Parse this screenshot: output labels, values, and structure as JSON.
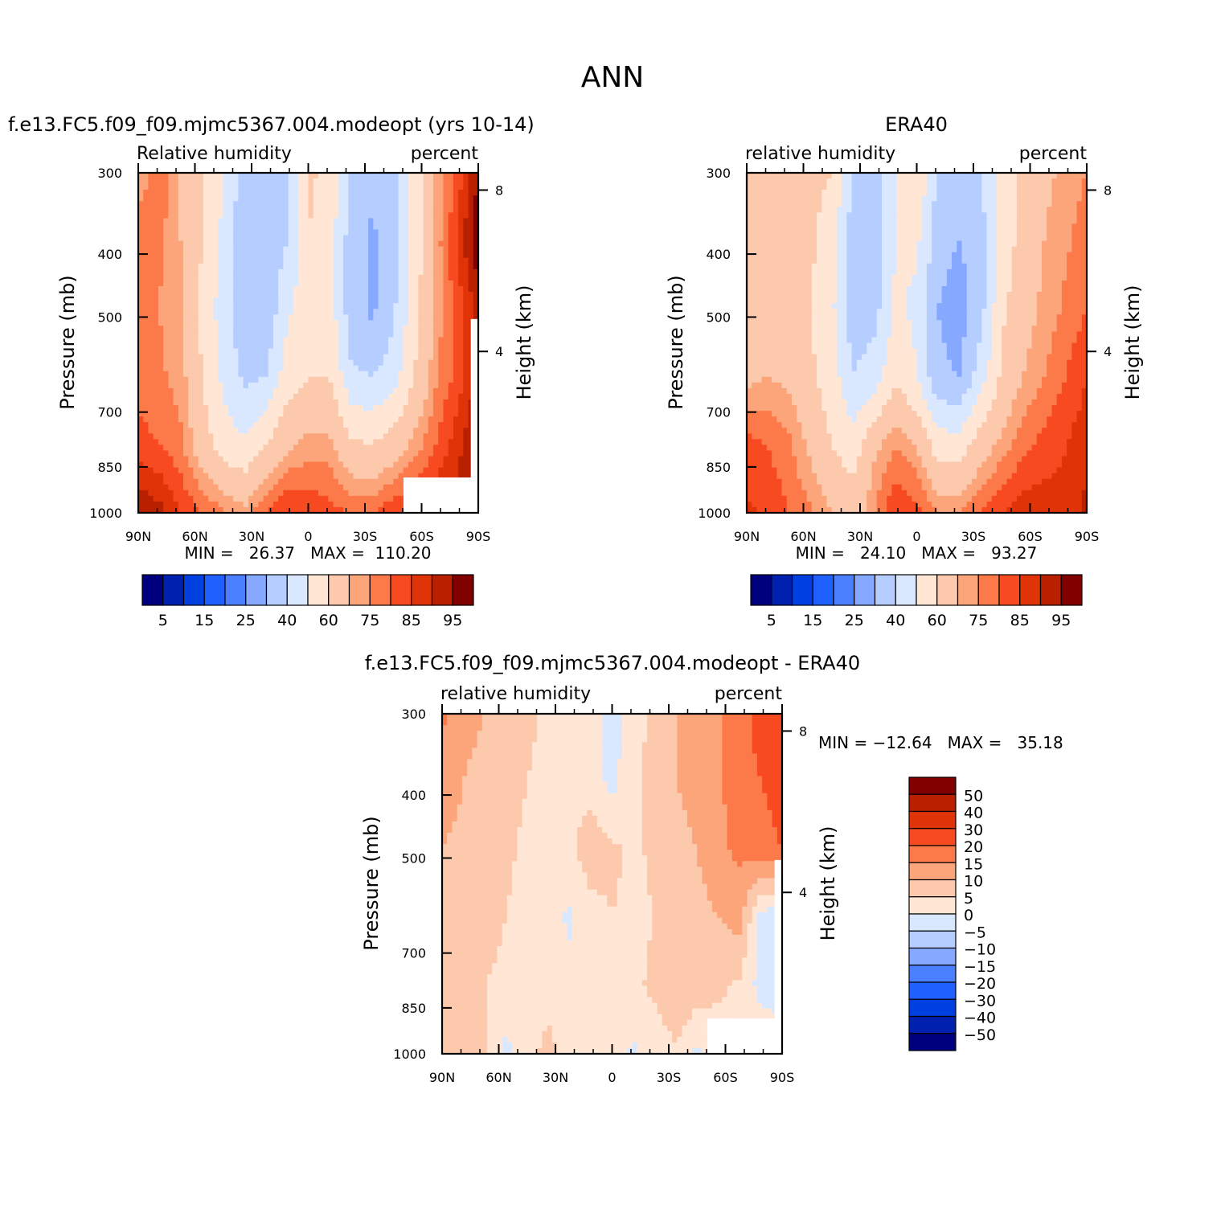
{
  "page_title": "ANN",
  "colors": {
    "abs_scale": [
      "#00007f",
      "#0020b0",
      "#0040e0",
      "#2060ff",
      "#4a7fff",
      "#86a8ff",
      "#b5cdff",
      "#d9e8ff",
      "#ffe6d5",
      "#fcc9ad",
      "#fca47a",
      "#fc7a4a",
      "#f74a20",
      "#e03308",
      "#b82000",
      "#800000"
    ],
    "diff_scale": [
      "#00007f",
      "#0020b0",
      "#0040e0",
      "#2060ff",
      "#4a7fff",
      "#86a8ff",
      "#b5cdff",
      "#d9e8ff",
      "#ffe6d5",
      "#fcc9ad",
      "#fca47a",
      "#fc7a4a",
      "#f74a20",
      "#e03308",
      "#b82000",
      "#800000"
    ]
  },
  "chart_data": [
    {
      "type": "heatmap",
      "title": "f.e13.FC5.f09_f09.mjmc5367.004.modeopt (yrs 10-14)",
      "left_label": "Relative humidity",
      "right_label": "percent",
      "ylabel": "Pressure (mb)",
      "y2label": "Height (km)",
      "x": [
        "90N",
        "60N",
        "30N",
        "0",
        "30S",
        "60S",
        "90S"
      ],
      "y": [
        300,
        400,
        500,
        700,
        850,
        1000
      ],
      "y2_ticks": [
        "8",
        "4"
      ],
      "ylim": [
        1000,
        300
      ],
      "min_text": "MIN =   26.37   MAX =  110.20",
      "colorbar_labels": [
        "5",
        "15",
        "25",
        "40",
        "60",
        "75",
        "85",
        "95"
      ],
      "values": [
        [
          70,
          80,
          68,
          62,
          50,
          35,
          33,
          38,
          62,
          57,
          40,
          33,
          38,
          55,
          70,
          82,
          95
        ],
        [
          80,
          76,
          70,
          60,
          48,
          32,
          32,
          40,
          60,
          55,
          35,
          28,
          36,
          54,
          72,
          85,
          100
        ],
        [
          78,
          75,
          70,
          58,
          45,
          32,
          32,
          48,
          55,
          55,
          35,
          28,
          38,
          56,
          72,
          82,
          92
        ],
        [
          78,
          76,
          73,
          60,
          48,
          38,
          40,
          55,
          60,
          60,
          42,
          40,
          45,
          60,
          74,
          82,
          92
        ],
        [
          82,
          80,
          76,
          65,
          55,
          52,
          60,
          68,
          72,
          72,
          62,
          60,
          65,
          72,
          80,
          88,
          96
        ],
        [
          95,
          92,
          85,
          80,
          76,
          72,
          80,
          86,
          84,
          82,
          80,
          80,
          84,
          86,
          90,
          92,
          95
        ]
      ]
    },
    {
      "type": "heatmap",
      "title": "ERA40",
      "left_label": "relative humidity",
      "right_label": "percent",
      "ylabel": "Pressure (mb)",
      "y2label": "Height (km)",
      "x": [
        "90N",
        "60N",
        "30N",
        "0",
        "30S",
        "60S",
        "90S"
      ],
      "y": [
        300,
        400,
        500,
        700,
        850,
        1000
      ],
      "y2_ticks": [
        "8",
        "4"
      ],
      "ylim": [
        1000,
        300
      ],
      "min_text": "MIN =   24.10   MAX =   93.27",
      "colorbar_labels": [
        "5",
        "15",
        "25",
        "40",
        "60",
        "75",
        "85",
        "95"
      ],
      "values": [
        [
          63,
          63,
          63,
          62,
          60,
          38,
          33,
          50,
          60,
          38,
          32,
          38,
          55,
          62,
          68,
          72,
          75
        ],
        [
          65,
          65,
          64,
          62,
          55,
          35,
          34,
          50,
          52,
          34,
          30,
          36,
          55,
          63,
          70,
          74,
          78
        ],
        [
          65,
          66,
          64,
          60,
          52,
          34,
          36,
          52,
          48,
          30,
          25,
          36,
          58,
          66,
          72,
          76,
          80
        ],
        [
          68,
          70,
          68,
          62,
          55,
          40,
          45,
          58,
          50,
          32,
          30,
          45,
          62,
          70,
          75,
          80,
          85
        ],
        [
          82,
          80,
          76,
          68,
          60,
          55,
          68,
          75,
          70,
          55,
          55,
          65,
          72,
          78,
          82,
          85,
          88
        ],
        [
          86,
          84,
          80,
          76,
          70,
          65,
          75,
          85,
          82,
          75,
          75,
          80,
          85,
          88,
          88,
          86,
          92
        ]
      ]
    },
    {
      "type": "heatmap",
      "title": "f.e13.FC5.f09_f09.mjmc5367.004.modeopt - ERA40",
      "left_label": "relative humidity",
      "right_label": "percent",
      "ylabel": "Pressure (mb)",
      "y2label": "Height (km)",
      "x": [
        "90N",
        "60N",
        "30N",
        "0",
        "30S",
        "60S",
        "90S"
      ],
      "y": [
        300,
        400,
        500,
        700,
        850,
        1000
      ],
      "y2_ticks": [
        "8",
        "4"
      ],
      "ylim": [
        1000,
        300
      ],
      "min_text": "MIN = −12.64   MAX =   35.18",
      "colorbar_labels": [
        "50",
        "40",
        "30",
        "20",
        "15",
        "10",
        "5",
        "0",
        "−5",
        "−10",
        "−15",
        "−20",
        "−30",
        "−40",
        "−50"
      ],
      "values": [
        [
          16,
          12,
          10,
          8,
          6,
          4,
          3,
          2,
          -2,
          3,
          6,
          10,
          12,
          14,
          18,
          22,
          25
        ],
        [
          12,
          10,
          8,
          7,
          5,
          4,
          3,
          3,
          -2,
          4,
          7,
          10,
          12,
          14,
          18,
          20,
          22
        ],
        [
          10,
          9,
          8,
          6,
          4,
          3,
          4,
          8,
          6,
          4,
          6,
          8,
          10,
          14,
          16,
          18,
          20
        ],
        [
          8,
          8,
          7,
          5,
          3,
          2,
          -1,
          3,
          5,
          4,
          5,
          6,
          8,
          10,
          12,
          -2,
          -4
        ],
        [
          6,
          6,
          5,
          4,
          3,
          4,
          2,
          3,
          4,
          4,
          6,
          10,
          8,
          6,
          4,
          -2,
          -6
        ],
        [
          10,
          8,
          6,
          -2,
          4,
          6,
          4,
          2,
          2,
          -1,
          2,
          4,
          -1,
          2,
          4,
          6,
          8
        ]
      ]
    }
  ]
}
